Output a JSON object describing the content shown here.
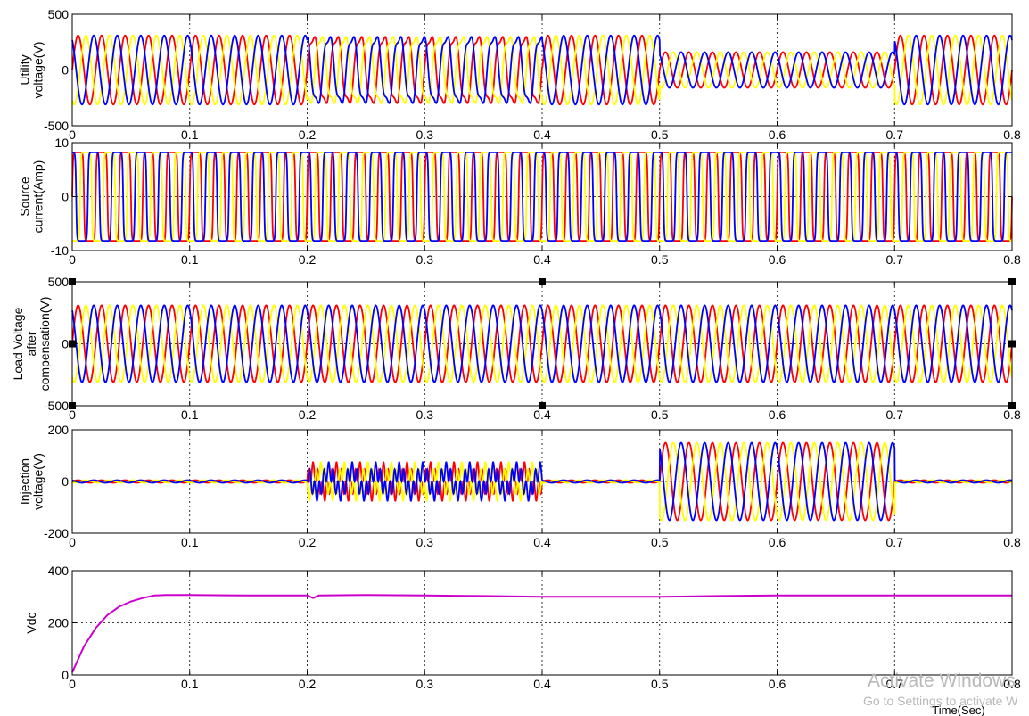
{
  "chart_data": [
    {
      "type": "line",
      "ylabel": [
        "Utility",
        "voltage(V)"
      ],
      "xlim": [
        0,
        0.8
      ],
      "ylim": [
        -500,
        500
      ],
      "yticks": [
        -500,
        0,
        500
      ],
      "xticks": [
        0,
        0.1,
        0.2,
        0.3,
        0.4,
        0.5,
        0.6,
        0.7,
        0.8
      ],
      "grid": true,
      "waveform": "sine",
      "frequency_hz": 50,
      "series_colors": [
        "#ff0000",
        "#ffff00",
        "#0000ff"
      ],
      "segments": [
        {
          "t0": 0.0,
          "t1": 0.2,
          "amplitude": 310
        },
        {
          "t0": 0.2,
          "t1": 0.4,
          "amplitude": 310,
          "harmonic_amplitude": 50
        },
        {
          "t0": 0.4,
          "t1": 0.5,
          "amplitude": 310
        },
        {
          "t0": 0.5,
          "t1": 0.7,
          "amplitude": 160
        },
        {
          "t0": 0.7,
          "t1": 0.8,
          "amplitude": 310
        }
      ]
    },
    {
      "type": "line",
      "ylabel": [
        "Source",
        "current(Amp)"
      ],
      "xlim": [
        0,
        0.8
      ],
      "ylim": [
        -10,
        10
      ],
      "yticks": [
        -10,
        0,
        10
      ],
      "xticks": [
        0,
        0.1,
        0.2,
        0.3,
        0.4,
        0.5,
        0.6,
        0.7,
        0.8
      ],
      "grid": true,
      "waveform": "quasi-square",
      "frequency_hz": 50,
      "series_colors": [
        "#ff0000",
        "#ffff00",
        "#0000ff"
      ],
      "segments": [
        {
          "t0": 0.0,
          "t1": 0.8,
          "amplitude": 8.2
        }
      ]
    },
    {
      "type": "line",
      "ylabel": [
        "Load Voltage",
        "after",
        "compensation(V)"
      ],
      "xlim": [
        0,
        0.8
      ],
      "ylim": [
        -500,
        500
      ],
      "yticks": [
        -500,
        0,
        500
      ],
      "xticks": [
        0,
        0.1,
        0.2,
        0.3,
        0.4,
        0.5,
        0.6,
        0.7,
        0.8
      ],
      "grid": true,
      "waveform": "sine",
      "frequency_hz": 50,
      "series_colors": [
        "#ff0000",
        "#ffff00",
        "#0000ff"
      ],
      "segments": [
        {
          "t0": 0.0,
          "t1": 0.8,
          "amplitude": 310
        }
      ]
    },
    {
      "type": "line",
      "ylabel": [
        "Injection",
        "voltage(V)"
      ],
      "xlim": [
        0,
        0.8
      ],
      "ylim": [
        -200,
        200
      ],
      "yticks": [
        -200,
        0,
        200
      ],
      "xticks": [
        0,
        0.1,
        0.2,
        0.3,
        0.4,
        0.5,
        0.6,
        0.7,
        0.8
      ],
      "grid": true,
      "waveform": "sine",
      "frequency_hz": 50,
      "series_colors": [
        "#ff0000",
        "#ffff00",
        "#0000ff"
      ],
      "segments": [
        {
          "t0": 0.0,
          "t1": 0.2,
          "amplitude": 5
        },
        {
          "t0": 0.2,
          "t1": 0.4,
          "amplitude": 75,
          "harmonic_frequency_hz": 250
        },
        {
          "t0": 0.4,
          "t1": 0.5,
          "amplitude": 5
        },
        {
          "t0": 0.5,
          "t1": 0.7,
          "amplitude": 150
        },
        {
          "t0": 0.7,
          "t1": 0.8,
          "amplitude": 5
        }
      ]
    },
    {
      "type": "line",
      "ylabel": [
        "Vdc"
      ],
      "xlabel": "Time(Sec)",
      "xlim": [
        0,
        0.8
      ],
      "ylim": [
        0,
        400
      ],
      "yticks": [
        0,
        200,
        400
      ],
      "xticks": [
        0,
        0.1,
        0.2,
        0.3,
        0.4,
        0.5,
        0.6,
        0.7,
        0.8
      ],
      "grid": true,
      "series_colors": [
        "#cc00cc"
      ],
      "x": [
        0,
        0.01,
        0.02,
        0.03,
        0.04,
        0.05,
        0.06,
        0.07,
        0.08,
        0.1,
        0.15,
        0.2,
        0.205,
        0.21,
        0.25,
        0.3,
        0.35,
        0.4,
        0.45,
        0.5,
        0.55,
        0.6,
        0.7,
        0.8
      ],
      "y": [
        10,
        110,
        180,
        230,
        262,
        282,
        295,
        305,
        307,
        307,
        305,
        305,
        295,
        305,
        307,
        305,
        303,
        300,
        300,
        300,
        303,
        305,
        305,
        305
      ]
    }
  ],
  "watermark": {
    "line1": "Activate Windows",
    "line2": "Go to Settings to activate W"
  }
}
